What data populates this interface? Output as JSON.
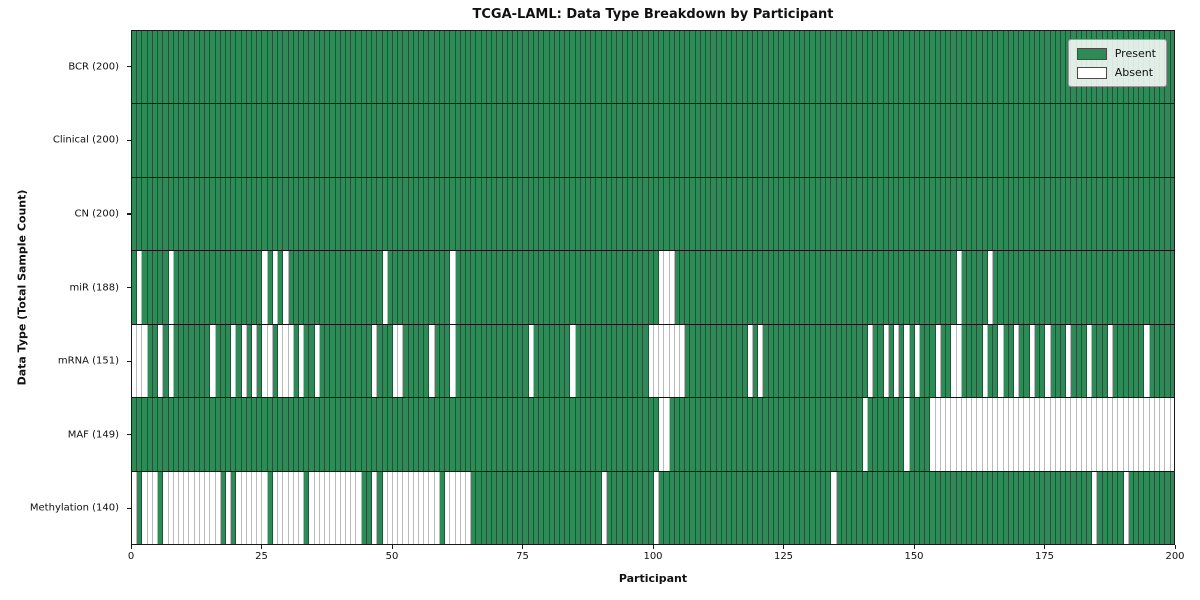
{
  "title": "TCGA-LAML: Data Type Breakdown by Participant",
  "x_axis": {
    "label": "Participant",
    "ticks": [
      0,
      25,
      50,
      75,
      100,
      125,
      150,
      175,
      200
    ],
    "range": [
      0,
      200
    ]
  },
  "y_axis": {
    "label": "Data Type (Total Sample Count)"
  },
  "legend": {
    "present_label": "Present",
    "absent_label": "Absent",
    "position": "upper right"
  },
  "colors": {
    "present": "#2e8b57",
    "absent": "#ffffff",
    "grid_on_green": "rgba(15,40,25,0.55)",
    "grid_on_white": "rgba(60,60,60,0.35)",
    "spine": "#1a1a1a"
  },
  "chart_data": {
    "type": "heatmap",
    "n_participants": 200,
    "legend_entries": [
      "Present",
      "Absent"
    ],
    "rows": [
      {
        "label": "BCR (200)",
        "data_type": "BCR",
        "present_count": 200,
        "absent_participants": []
      },
      {
        "label": "Clinical (200)",
        "data_type": "Clinical",
        "present_count": 200,
        "absent_participants": []
      },
      {
        "label": "CN (200)",
        "data_type": "CN",
        "present_count": 200,
        "absent_participants": []
      },
      {
        "label": "miR (188)",
        "data_type": "miR",
        "present_count": 188,
        "absent_participants": [
          1,
          7,
          25,
          27,
          29,
          48,
          61,
          101,
          102,
          103,
          158,
          164
        ]
      },
      {
        "label": "mRNA (151)",
        "data_type": "mRNA",
        "present_count": 151,
        "absent_participants": [
          0,
          1,
          2,
          5,
          7,
          15,
          19,
          21,
          23,
          25,
          26,
          28,
          29,
          30,
          32,
          35,
          46,
          50,
          51,
          57,
          61,
          76,
          84,
          99,
          100,
          101,
          102,
          103,
          104,
          105,
          118,
          120,
          141,
          144,
          146,
          148,
          150,
          154,
          157,
          158,
          163,
          166,
          169,
          172,
          175,
          179,
          183,
          187,
          194
        ]
      },
      {
        "label": "MAF (149)",
        "data_type": "MAF",
        "present_count": 149,
        "absent_participants": [
          101,
          102,
          140,
          148,
          153,
          154,
          155,
          156,
          157,
          158,
          159,
          160,
          161,
          162,
          163,
          164,
          165,
          166,
          167,
          168,
          169,
          170,
          171,
          172,
          173,
          174,
          175,
          176,
          177,
          178,
          179,
          180,
          181,
          182,
          183,
          184,
          185,
          186,
          187,
          188,
          189,
          190,
          191,
          192,
          193,
          194,
          195,
          196,
          197,
          198,
          199
        ]
      },
      {
        "label": "Methylation (140)",
        "data_type": "Methylation",
        "present_count": 140,
        "absent_participants": [
          0,
          2,
          3,
          4,
          6,
          7,
          8,
          9,
          10,
          11,
          12,
          13,
          14,
          15,
          16,
          18,
          20,
          21,
          22,
          23,
          24,
          25,
          27,
          28,
          29,
          30,
          31,
          32,
          34,
          35,
          36,
          37,
          38,
          39,
          40,
          41,
          42,
          43,
          46,
          48,
          49,
          50,
          51,
          52,
          53,
          54,
          55,
          56,
          57,
          58,
          60,
          61,
          62,
          63,
          64,
          90,
          100,
          134,
          184,
          190
        ]
      }
    ]
  }
}
